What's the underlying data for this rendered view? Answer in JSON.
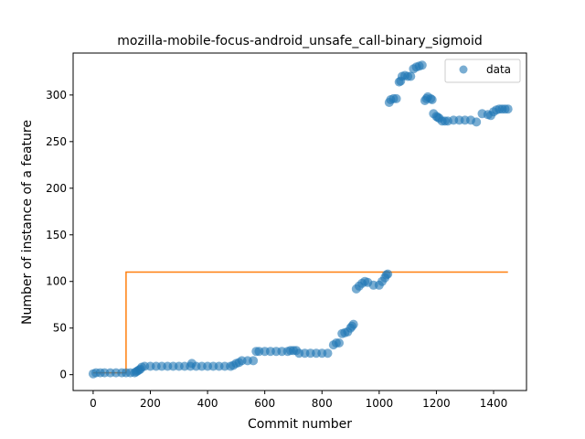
{
  "chart_data": {
    "type": "scatter",
    "title": "mozilla-mobile-focus-android_unsafe_call-binary_sigmoid",
    "xlabel": "Commit number",
    "ylabel": "Number of instance of a feature",
    "xlim": [
      -70,
      1515
    ],
    "ylim": [
      -17,
      345
    ],
    "xticks": [
      0,
      200,
      400,
      600,
      800,
      1000,
      1200,
      1400
    ],
    "yticks": [
      0,
      50,
      100,
      150,
      200,
      250,
      300
    ],
    "grid": false,
    "legend": {
      "placement": "top-right",
      "entries": [
        "data"
      ]
    },
    "colors": {
      "data": "#1f77b4",
      "fit": "#ff7f0e"
    },
    "series": [
      {
        "name": "data",
        "kind": "scatter",
        "x": [
          0,
          10,
          25,
          40,
          60,
          80,
          100,
          115,
          130,
          145,
          150,
          155,
          160,
          165,
          170,
          180,
          200,
          220,
          240,
          260,
          280,
          300,
          320,
          340,
          345,
          360,
          380,
          400,
          420,
          440,
          460,
          480,
          490,
          500,
          510,
          520,
          540,
          560,
          570,
          580,
          600,
          620,
          640,
          660,
          680,
          690,
          700,
          710,
          720,
          740,
          760,
          780,
          800,
          820,
          840,
          850,
          860,
          870,
          880,
          890,
          900,
          905,
          910,
          920,
          930,
          940,
          950,
          960,
          980,
          1000,
          1010,
          1020,
          1025,
          1030,
          1035,
          1040,
          1050,
          1060,
          1070,
          1075,
          1080,
          1090,
          1100,
          1110,
          1120,
          1130,
          1140,
          1150,
          1160,
          1165,
          1170,
          1180,
          1185,
          1190,
          1200,
          1205,
          1210,
          1220,
          1230,
          1240,
          1260,
          1280,
          1300,
          1320,
          1340,
          1360,
          1380,
          1390,
          1400,
          1410,
          1420,
          1430,
          1440,
          1450
        ],
        "y": [
          1,
          2,
          2,
          2,
          2,
          2,
          2,
          2,
          2,
          2,
          3,
          4,
          5,
          6,
          8,
          9,
          9,
          9,
          9,
          9,
          9,
          9,
          9,
          9,
          12,
          9,
          9,
          9,
          9,
          9,
          9,
          9,
          10,
          12,
          13,
          15,
          15,
          15,
          25,
          25,
          25,
          25,
          25,
          25,
          25,
          26,
          26,
          26,
          23,
          23,
          23,
          23,
          23,
          23,
          32,
          34,
          34,
          44,
          45,
          46,
          50,
          52,
          54,
          92,
          95,
          98,
          100,
          99,
          96,
          96,
          100,
          104,
          107,
          108,
          292,
          295,
          296,
          296,
          314,
          315,
          320,
          321,
          320,
          320,
          328,
          330,
          331,
          332,
          294,
          296,
          298,
          296,
          295,
          280,
          277,
          276,
          275,
          272,
          272,
          272,
          273,
          273,
          273,
          273,
          271,
          280,
          279,
          278,
          282,
          284,
          285,
          285,
          285,
          285
        ]
      },
      {
        "name": "",
        "kind": "step",
        "x": [
          0,
          115,
          115,
          1450
        ],
        "y": [
          2,
          2,
          110,
          110
        ]
      }
    ]
  }
}
